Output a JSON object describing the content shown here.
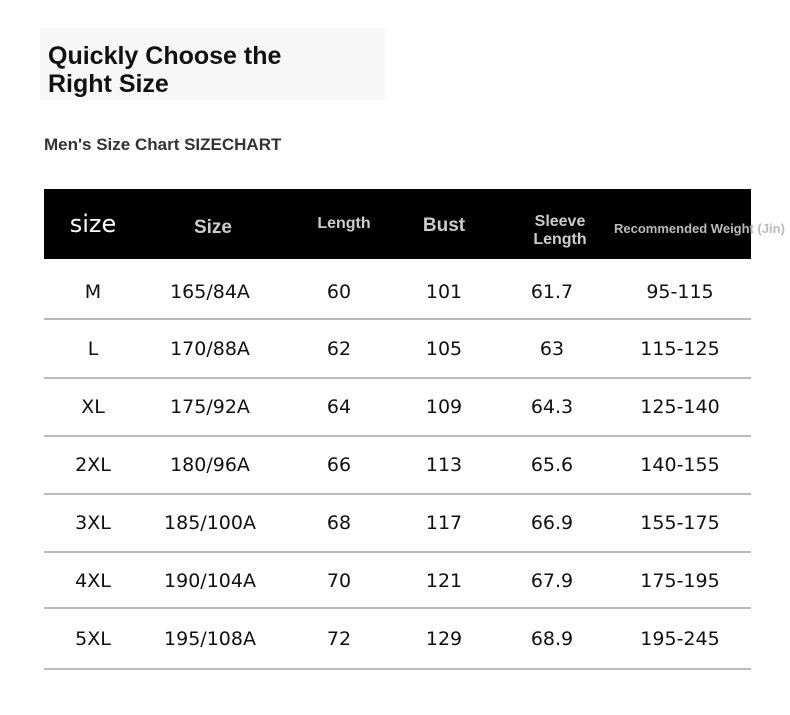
{
  "header": {
    "title": "Quickly Choose the Right Size",
    "subtitle": "Men's Size Chart SIZECHART"
  },
  "table": {
    "columns": [
      "size",
      "Size",
      "Length",
      "Bust",
      "Sleeve Length",
      "Recommended Weight (Jin)"
    ],
    "rows": [
      [
        "M",
        "165/84A",
        "60",
        "101",
        "61.7",
        "95-115"
      ],
      [
        "L",
        "170/88A",
        "62",
        "105",
        "63",
        "115-125"
      ],
      [
        "XL",
        "175/92A",
        "64",
        "109",
        "64.3",
        "125-140"
      ],
      [
        "2XL",
        "180/96A",
        "66",
        "113",
        "65.6",
        "140-155"
      ],
      [
        "3XL",
        "185/100A",
        "68",
        "117",
        "66.9",
        "155-175"
      ],
      [
        "4XL",
        "190/104A",
        "70",
        "121",
        "67.9",
        "175-195"
      ],
      [
        "5XL",
        "195/108A",
        "72",
        "129",
        "68.9",
        "195-245"
      ]
    ]
  }
}
